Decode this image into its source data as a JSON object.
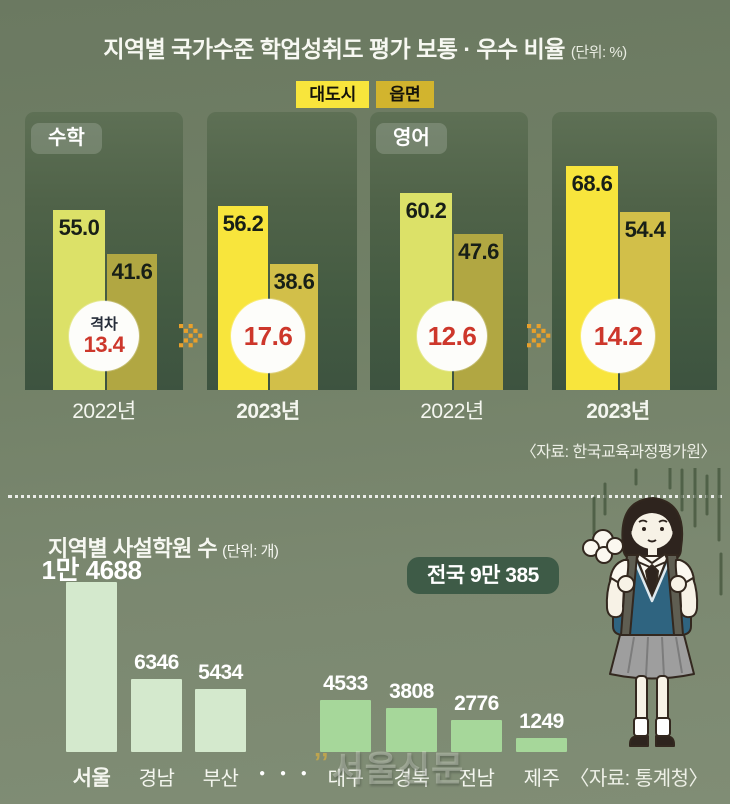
{
  "watermark": {
    "mark": "’’",
    "text": "서울신문"
  },
  "icons": {
    "arrow": "pixel-arrow-right-icon",
    "student": "stressed-student-illustration"
  },
  "colors": {
    "city_2022": "#dce168",
    "rural_2022": "#b1a742",
    "city_2023": "#f8e53c",
    "rural_2023": "#d2bf49",
    "legend_city": "#f8e53c",
    "legend_rural": "#d2b42e",
    "gap_text": "#cd372b",
    "arrow": "#e9a02b",
    "region_bars_left": "#d4e9cd",
    "region_bars_right": "#a6d79a",
    "badge_bg": "#3e5b47",
    "panel_bg": "#445b42"
  },
  "chart_data": [
    {
      "type": "bar",
      "title": "지역별 국가수준 학업성취도 평가 보통 · 우수 비율",
      "unit_label": "(단위: %)",
      "legend": [
        "대도시",
        "읍면"
      ],
      "legend_position": "top-center",
      "source": "〈자료: 한국교육과정평가원〉",
      "gap_word": "격차",
      "ylim": [
        0,
        85
      ],
      "grid": false,
      "groups": [
        {
          "subject": "수학",
          "columns": [
            {
              "year": "2022년",
              "year_bold": false,
              "values": {
                "대도시": 55.0,
                "읍면": 41.6
              },
              "gap": 13.4,
              "show_gap_word": true
            },
            {
              "year": "2023년",
              "year_bold": true,
              "values": {
                "대도시": 56.2,
                "읍면": 38.6
              },
              "gap": 17.6,
              "show_gap_word": false
            }
          ]
        },
        {
          "subject": "영어",
          "columns": [
            {
              "year": "2022년",
              "year_bold": false,
              "values": {
                "대도시": 60.2,
                "읍면": 47.6
              },
              "gap": 12.6,
              "show_gap_word": false
            },
            {
              "year": "2023년",
              "year_bold": true,
              "values": {
                "대도시": 68.6,
                "읍면": 54.4
              },
              "gap": 14.2,
              "show_gap_word": false
            }
          ]
        }
      ]
    },
    {
      "type": "bar",
      "title": "지역별 사설학원 수",
      "unit_label": "(단위: 개)",
      "total_badge": "전국 9만 385",
      "source": "〈자료: 통계청〉",
      "ellipsis": "● ● ●",
      "categories": [
        "서울",
        "경남",
        "부산",
        "대구",
        "경북",
        "전남",
        "제주"
      ],
      "values": [
        14688,
        6346,
        5434,
        4533,
        3808,
        2776,
        1249
      ],
      "value_labels": [
        "1만 4688",
        "6346",
        "5434",
        "4533",
        "3808",
        "2776",
        "1249"
      ],
      "grid": false
    }
  ]
}
